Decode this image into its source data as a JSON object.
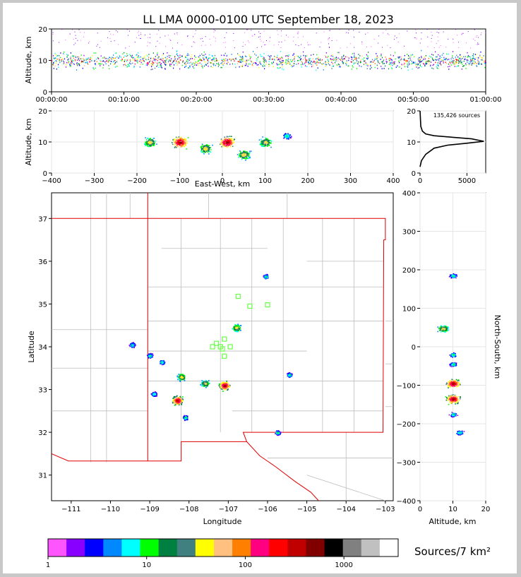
{
  "chart_data": [
    {
      "type": "scatter",
      "panel": "altitude-time",
      "title": "LL LMA 0000-0100 UTC September 18, 2023",
      "xlabel": "",
      "ylabel": "Altitude, km",
      "x_ticks": [
        "00:00:00",
        "00:10:00",
        "00:20:00",
        "00:30:00",
        "00:40:00",
        "00:50:00",
        "01:00:00"
      ],
      "ylim": [
        0,
        20
      ],
      "y_ticks": [
        0,
        10,
        20
      ],
      "grid": true,
      "density": {
        "x_range_minutes": [
          0,
          60
        ],
        "main_band_altitude_km": [
          4,
          14
        ],
        "peak_altitude_km": 10
      }
    },
    {
      "type": "scatter",
      "panel": "east-west-altitude",
      "xlabel": "East-West, km",
      "ylabel": "Altitude, km",
      "xlim": [
        -400,
        400
      ],
      "x_ticks": [
        -400,
        -300,
        -200,
        -100,
        0,
        100,
        200,
        300,
        400
      ],
      "ylim": [
        0,
        20
      ],
      "y_ticks": [
        0,
        10,
        20
      ],
      "grid": true,
      "clusters": [
        {
          "x_km": -170,
          "alt_km": 10,
          "level": "medium"
        },
        {
          "x_km": -100,
          "alt_km": 10,
          "level": "high"
        },
        {
          "x_km": -40,
          "alt_km": 8,
          "level": "medium"
        },
        {
          "x_km": 10,
          "alt_km": 10,
          "level": "high"
        },
        {
          "x_km": 50,
          "alt_km": 6,
          "level": "medium"
        },
        {
          "x_km": 100,
          "alt_km": 10,
          "level": "medium"
        },
        {
          "x_km": 150,
          "alt_km": 12,
          "level": "low"
        }
      ]
    },
    {
      "type": "line",
      "panel": "altitude-histogram",
      "annotation": "135,426 sources",
      "xlim": [
        0,
        7000
      ],
      "x_ticks": [
        0,
        5000
      ],
      "ylim": [
        0,
        20
      ],
      "y_ticks": [
        0,
        10,
        20
      ],
      "x": [
        0,
        150,
        600,
        1500,
        3000,
        5000,
        6800,
        5500,
        3500,
        1500,
        600,
        250,
        80,
        0
      ],
      "y": [
        2,
        4,
        6,
        8,
        9,
        9.6,
        10.2,
        11,
        11.5,
        12,
        12.6,
        13.5,
        15,
        20
      ]
    },
    {
      "type": "heatmap",
      "panel": "plan-view",
      "xlabel": "Longitude",
      "ylabel": "Latitude",
      "xlim": [
        -111.5,
        -102.8
      ],
      "x_ticks": [
        -111,
        -110,
        -109,
        -108,
        -107,
        -106,
        -105,
        -104,
        -103
      ],
      "ylim": [
        30.4,
        37.6
      ],
      "y_ticks": [
        31,
        32,
        33,
        34,
        35,
        36,
        37
      ],
      "clusters": [
        {
          "lon": -107.1,
          "lat": 33.1,
          "level": "high"
        },
        {
          "lon": -108.2,
          "lat": 33.3,
          "level": "medium"
        },
        {
          "lon": -108.3,
          "lat": 32.75,
          "level": "high"
        },
        {
          "lon": -107.6,
          "lat": 33.15,
          "level": "medium"
        },
        {
          "lon": -106.8,
          "lat": 34.45,
          "level": "medium"
        },
        {
          "lon": -108.7,
          "lat": 33.65,
          "level": "low"
        },
        {
          "lon": -109.0,
          "lat": 33.8,
          "level": "low"
        },
        {
          "lon": -106.05,
          "lat": 35.65,
          "level": "low"
        },
        {
          "lon": -105.75,
          "lat": 32.0,
          "level": "low"
        },
        {
          "lon": -105.45,
          "lat": 33.35,
          "level": "low"
        },
        {
          "lon": -108.1,
          "lat": 32.35,
          "level": "low"
        },
        {
          "lon": -108.9,
          "lat": 32.9,
          "level": "low"
        },
        {
          "lon": -109.45,
          "lat": 34.05,
          "level": "low"
        }
      ],
      "stations": [
        {
          "lon": -106.75,
          "lat": 35.18
        },
        {
          "lon": -106.45,
          "lat": 34.95
        },
        {
          "lon": -106.0,
          "lat": 34.98
        },
        {
          "lon": -107.3,
          "lat": 34.08
        },
        {
          "lon": -107.1,
          "lat": 34.18
        },
        {
          "lon": -107.4,
          "lat": 34.0
        },
        {
          "lon": -107.2,
          "lat": 34.0
        },
        {
          "lon": -106.95,
          "lat": 34.0
        },
        {
          "lon": -107.15,
          "lat": 33.95
        },
        {
          "lon": -107.1,
          "lat": 33.78
        }
      ]
    },
    {
      "type": "scatter",
      "panel": "north-south-altitude",
      "xlabel": "Altitude, km",
      "ylabel": "North-South, km",
      "xlim": [
        0,
        20
      ],
      "x_ticks": [
        0,
        10,
        20
      ],
      "ylim": [
        -400,
        400
      ],
      "y_ticks": [
        -400,
        -300,
        -200,
        -100,
        0,
        100,
        200,
        300,
        400
      ],
      "grid": true,
      "clusters": [
        {
          "alt_km": 10,
          "ns_km": 185,
          "level": "low"
        },
        {
          "alt_km": 7,
          "ns_km": 48,
          "level": "medium"
        },
        {
          "alt_km": 10,
          "ns_km": -20,
          "level": "low"
        },
        {
          "alt_km": 10,
          "ns_km": -45,
          "level": "low"
        },
        {
          "alt_km": 10,
          "ns_km": -95,
          "level": "high"
        },
        {
          "alt_km": 10,
          "ns_km": -135,
          "level": "high"
        },
        {
          "alt_km": 10,
          "ns_km": -175,
          "level": "low"
        },
        {
          "alt_km": 12,
          "ns_km": -222,
          "level": "low"
        }
      ]
    },
    {
      "type": "colorbar",
      "label": "Sources/7 km²",
      "tick_labels": [
        "1",
        "10",
        "100",
        "1000"
      ],
      "colors": [
        "#ff55ff",
        "#8800ff",
        "#0000ff",
        "#0088ff",
        "#00ffff",
        "#00ff00",
        "#008040",
        "#408080",
        "#ffff00",
        "#ffc080",
        "#ff8000",
        "#ff0080",
        "#ff0000",
        "#c00000",
        "#800000",
        "#000000",
        "#808080",
        "#c0c0c0",
        "#ffffff"
      ]
    }
  ]
}
